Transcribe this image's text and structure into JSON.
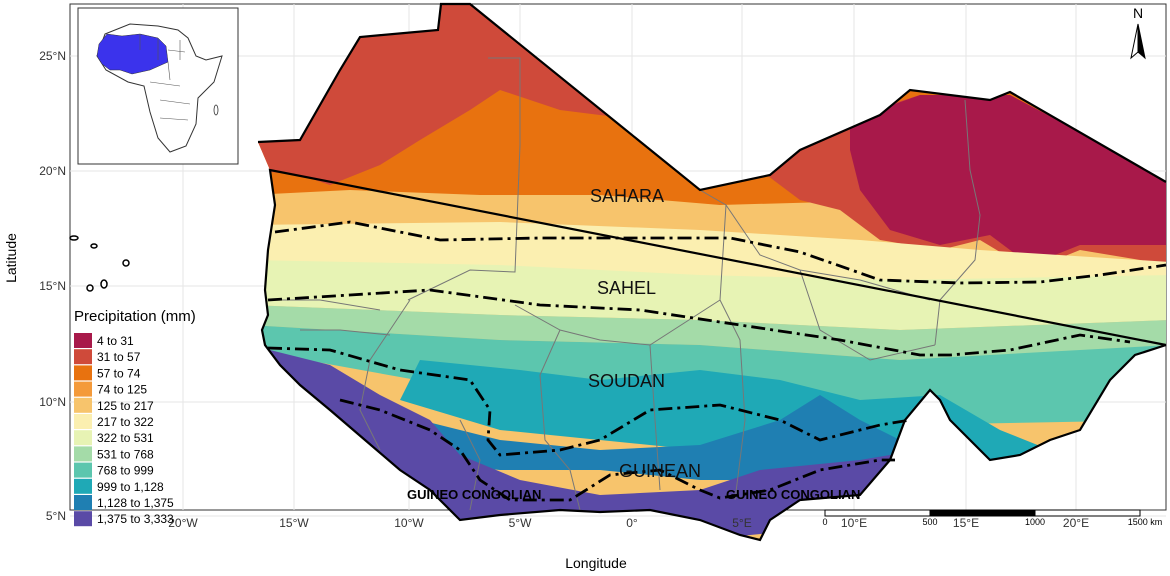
{
  "axes": {
    "x_title": "Longitude",
    "y_title": "Latitude",
    "x_ticks": [
      "20°W",
      "15°W",
      "10°W",
      "5°W",
      "0°",
      "5°E",
      "10°E",
      "15°E",
      "20°E"
    ],
    "y_ticks": [
      "25°N",
      "20°N",
      "15°N",
      "10°N",
      "5°N"
    ]
  },
  "zones": {
    "sahara": "SAHARA",
    "sahel": "SAHEL",
    "soudan": "SOUDAN",
    "guinean": "GUINEAN",
    "guineo_west": "GUINEO CONGOLIAN",
    "guineo_east": "GUINEO CONGOLIAN"
  },
  "legend": {
    "title": "Precipitation (mm)",
    "items": [
      {
        "label": "4 to 31",
        "color": "#a8194a"
      },
      {
        "label": "31 to 57",
        "color": "#cf4a3a"
      },
      {
        "label": "57 to 74",
        "color": "#e8720f"
      },
      {
        "label": "74 to 125",
        "color": "#f49a3a"
      },
      {
        "label": "125 to 217",
        "color": "#f7c46c"
      },
      {
        "label": "217 to 322",
        "color": "#fbefb0"
      },
      {
        "label": "322 to 531",
        "color": "#e7f3b4"
      },
      {
        "label": "531 to 768",
        "color": "#a4dba8"
      },
      {
        "label": "768 to 999",
        "color": "#5cc6ae"
      },
      {
        "label": "999 to 1,128",
        "color": "#1fa9b6"
      },
      {
        "label": "1,128 to 1,375",
        "color": "#1f7fb2"
      },
      {
        "label": "1,375 to 3,333",
        "color": "#5a4aa6"
      }
    ]
  },
  "north_arrow": {
    "label": "N"
  },
  "scale_bar": {
    "labels": [
      "0",
      "500",
      "1000",
      "1500 km"
    ]
  }
}
